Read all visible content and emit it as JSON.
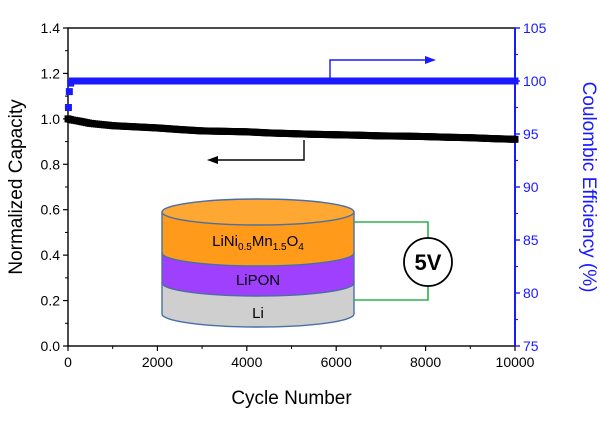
{
  "chart_data": {
    "type": "scatter",
    "xlabel": "Cycle Number",
    "ylabel_left": "Normalized Capacity",
    "ylabel_right": "Coulombic Efficiency (%)",
    "xlim": [
      0,
      10000
    ],
    "ylim_left": [
      0.0,
      1.4
    ],
    "ylim_right": [
      75,
      105
    ],
    "x_ticks": [
      "0",
      "2000",
      "4000",
      "6000",
      "8000",
      "10000"
    ],
    "y_left_ticks": [
      "0.0",
      "0.2",
      "0.4",
      "0.6",
      "0.8",
      "1.0",
      "1.2",
      "1.4"
    ],
    "y_right_ticks": [
      "75",
      "80",
      "85",
      "90",
      "95",
      "100",
      "105"
    ],
    "grid": false,
    "series": [
      {
        "axis": "left",
        "color": "#000000",
        "x": [
          0,
          100,
          250,
          500,
          1000,
          1500,
          2000,
          2500,
          3000,
          3500,
          4000,
          4500,
          5000,
          5500,
          6000,
          6500,
          7000,
          7500,
          8000,
          8500,
          9000,
          9500,
          10000
        ],
        "values": [
          1.0,
          0.995,
          0.99,
          0.98,
          0.97,
          0.965,
          0.96,
          0.953,
          0.947,
          0.945,
          0.943,
          0.938,
          0.935,
          0.932,
          0.93,
          0.928,
          0.925,
          0.924,
          0.922,
          0.919,
          0.917,
          0.913,
          0.91
        ]
      },
      {
        "axis": "right",
        "color": "#1a1aff",
        "x": [
          10,
          30,
          60,
          100,
          150,
          200,
          300,
          500,
          1000,
          2000,
          3000,
          4000,
          5000,
          6000,
          7000,
          8000,
          9000,
          10000
        ],
        "values": [
          97.5,
          99.0,
          99.8,
          100.0,
          100.0,
          100.0,
          100.0,
          100.0,
          100.0,
          100.0,
          100.0,
          100.0,
          100.0,
          100.0,
          100.0,
          100.0,
          100.0,
          100.0
        ]
      }
    ]
  },
  "inset": {
    "layers": [
      {
        "label_main": "LiNi",
        "sub1": "0.5",
        "mid": "Mn",
        "sub2": "1.5",
        "tail": "O",
        "sub3": "4",
        "color": "#ff9a1a"
      },
      {
        "label": "LiPON",
        "color": "#a040ff"
      },
      {
        "label": "Li",
        "color": "#cfcfcf"
      }
    ],
    "voltage": "5V"
  },
  "colors": {
    "left_axis": "#000000",
    "right_axis": "#1a1aff",
    "wire": "#2db34a"
  }
}
